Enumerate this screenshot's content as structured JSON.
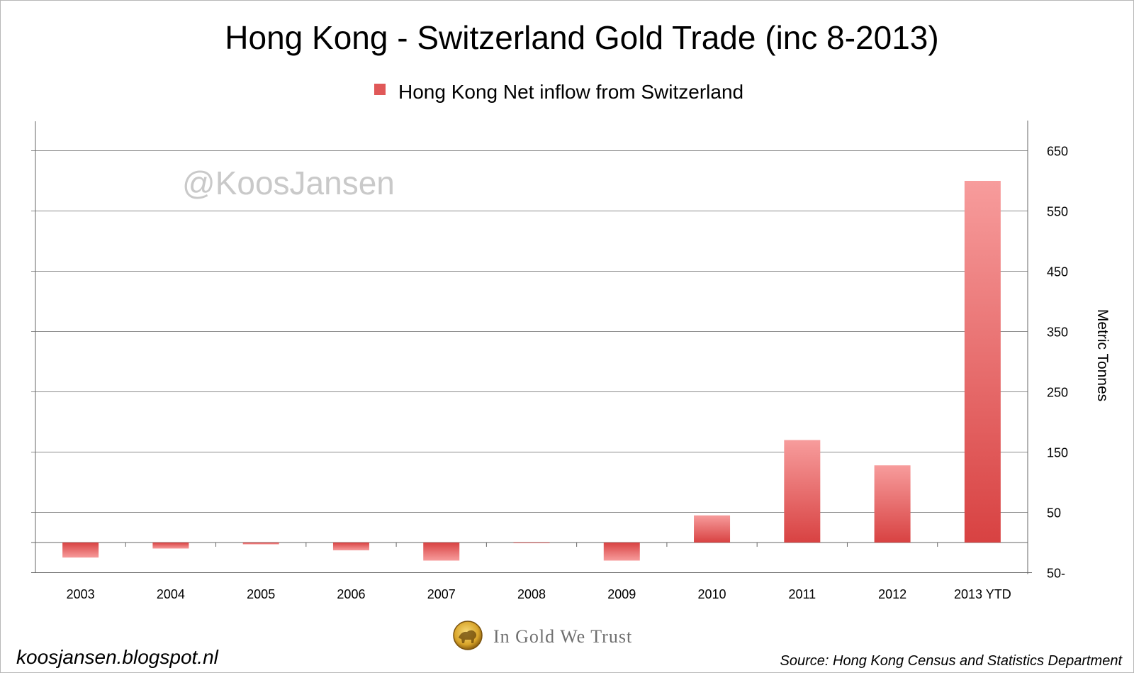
{
  "chart_data": {
    "type": "bar",
    "title": "Hong Kong - Switzerland Gold Trade (inc 8-2013)",
    "legend": [
      "Hong Kong Net inflow from Switzerland"
    ],
    "legend_position": "top-center",
    "categories": [
      "2003",
      "2004",
      "2005",
      "2006",
      "2007",
      "2008",
      "2009",
      "2010",
      "2011",
      "2012",
      "2013 YTD"
    ],
    "series": [
      {
        "name": "Hong Kong Net inflow from Switzerland",
        "values": [
          -25,
          -10,
          -3,
          -13,
          -30,
          -1,
          -30,
          45,
          170,
          128,
          600
        ]
      }
    ],
    "ylabel": "Metric Tonnes",
    "xlabel": "",
    "ylim": [
      -50,
      700
    ],
    "yticks": [
      -50,
      50,
      150,
      250,
      350,
      450,
      550,
      650
    ],
    "ytick_labels": [
      "50-",
      "50",
      "150",
      "250",
      "350",
      "450",
      "550",
      "650"
    ],
    "y_axis_side": "right",
    "grid": true,
    "bar_color_top": "#f79c9c",
    "bar_color_bottom": "#d84242"
  },
  "watermark": "@KoosJansen",
  "brand": "In Gold We Trust",
  "blog_url": "koosjansen.blogspot.nl",
  "source": "Source: Hong Kong Census and Statistics Department",
  "colors": {
    "gridline": "#8c8c8c",
    "axis": "#666666",
    "legend_swatch": "#e05858",
    "coin_gold": "#d9a52a"
  }
}
